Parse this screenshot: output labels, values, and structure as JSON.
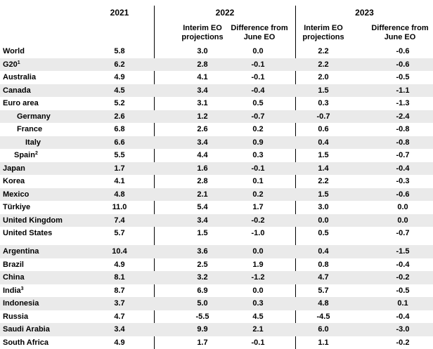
{
  "header": {
    "year_2021": "2021",
    "year_2022": "2022",
    "year_2023": "2023",
    "col_interim_line1": "Interim EO",
    "col_interim_line2": "projections",
    "col_diff_line1": "Difference from",
    "col_diff_line2": "June EO"
  },
  "rows": [
    {
      "label": "World",
      "sup": "",
      "indent": 0,
      "v2021": "5.8",
      "p2022": "3.0",
      "d2022": "0.0",
      "p2023": "2.2",
      "d2023": "-0.6"
    },
    {
      "label": "G20",
      "sup": "1",
      "indent": 0,
      "v2021": "6.2",
      "p2022": "2.8",
      "d2022": "-0.1",
      "p2023": "2.2",
      "d2023": "-0.6"
    },
    {
      "label": "Australia",
      "sup": "",
      "indent": 0,
      "v2021": "4.9",
      "p2022": "4.1",
      "d2022": "-0.1",
      "p2023": "2.0",
      "d2023": "-0.5"
    },
    {
      "label": "Canada",
      "sup": "",
      "indent": 0,
      "v2021": "4.5",
      "p2022": "3.4",
      "d2022": "-0.4",
      "p2023": "1.5",
      "d2023": "-1.1"
    },
    {
      "label": "Euro area",
      "sup": "",
      "indent": 0,
      "v2021": "5.2",
      "p2022": "3.1",
      "d2022": "0.5",
      "p2023": "0.3",
      "d2023": "-1.3"
    },
    {
      "label": "Germany",
      "sup": "",
      "indent": 1,
      "v2021": "2.6",
      "p2022": "1.2",
      "d2022": "-0.7",
      "p2023": "-0.7",
      "d2023": "-2.4"
    },
    {
      "label": "France",
      "sup": "",
      "indent": 1,
      "v2021": "6.8",
      "p2022": "2.6",
      "d2022": "0.2",
      "p2023": "0.6",
      "d2023": "-0.8"
    },
    {
      "label": "Italy",
      "sup": "",
      "indent": 2,
      "v2021": "6.6",
      "p2022": "3.4",
      "d2022": "0.9",
      "p2023": "0.4",
      "d2023": "-0.8"
    },
    {
      "label": "Spain",
      "sup": "2",
      "indent": 3,
      "v2021": "5.5",
      "p2022": "4.4",
      "d2022": "0.3",
      "p2023": "1.5",
      "d2023": "-0.7"
    },
    {
      "label": "Japan",
      "sup": "",
      "indent": 0,
      "v2021": "1.7",
      "p2022": "1.6",
      "d2022": "-0.1",
      "p2023": "1.4",
      "d2023": "-0.4"
    },
    {
      "label": "Korea",
      "sup": "",
      "indent": 0,
      "v2021": "4.1",
      "p2022": "2.8",
      "d2022": "0.1",
      "p2023": "2.2",
      "d2023": "-0.3"
    },
    {
      "label": "Mexico",
      "sup": "",
      "indent": 0,
      "v2021": "4.8",
      "p2022": "2.1",
      "d2022": "0.2",
      "p2023": "1.5",
      "d2023": "-0.6"
    },
    {
      "label": "Türkiye",
      "sup": "",
      "indent": 0,
      "v2021": "11.0",
      "p2022": "5.4",
      "d2022": "1.7",
      "p2023": "3.0",
      "d2023": "0.0"
    },
    {
      "label": "United Kingdom",
      "sup": "",
      "indent": 0,
      "v2021": "7.4",
      "p2022": "3.4",
      "d2022": "-0.2",
      "p2023": "0.0",
      "d2023": "0.0"
    },
    {
      "label": "United States",
      "sup": "",
      "indent": 0,
      "v2021": "5.7",
      "p2022": "1.5",
      "d2022": "-1.0",
      "p2023": "0.5",
      "d2023": "-0.7"
    },
    {
      "label": "Argentina",
      "sup": "",
      "indent": 0,
      "v2021": "10.4",
      "p2022": "3.6",
      "d2022": "0.0",
      "p2023": "0.4",
      "d2023": "-1.5"
    },
    {
      "label": "Brazil",
      "sup": "",
      "indent": 0,
      "v2021": "4.9",
      "p2022": "2.5",
      "d2022": "1.9",
      "p2023": "0.8",
      "d2023": "-0.4"
    },
    {
      "label": "China",
      "sup": "",
      "indent": 0,
      "v2021": "8.1",
      "p2022": "3.2",
      "d2022": "-1.2",
      "p2023": "4.7",
      "d2023": "-0.2"
    },
    {
      "label": "India",
      "sup": "3",
      "indent": 0,
      "v2021": "8.7",
      "p2022": "6.9",
      "d2022": "0.0",
      "p2023": "5.7",
      "d2023": "-0.5"
    },
    {
      "label": "Indonesia",
      "sup": "",
      "indent": 0,
      "v2021": "3.7",
      "p2022": "5.0",
      "d2022": "0.3",
      "p2023": "4.8",
      "d2023": "0.1"
    },
    {
      "label": "Russia",
      "sup": "",
      "indent": 0,
      "v2021": "4.7",
      "p2022": "-5.5",
      "d2022": "4.5",
      "p2023": "-4.5",
      "d2023": "-0.4"
    },
    {
      "label": "Saudi Arabia",
      "sup": "",
      "indent": 0,
      "v2021": "3.4",
      "p2022": "9.9",
      "d2022": "2.1",
      "p2023": "6.0",
      "d2023": "-3.0"
    },
    {
      "label": "South Africa",
      "sup": "",
      "indent": 0,
      "v2021": "4.9",
      "p2022": "1.7",
      "d2022": "-0.1",
      "p2023": "1.1",
      "d2023": "-0.2"
    }
  ]
}
